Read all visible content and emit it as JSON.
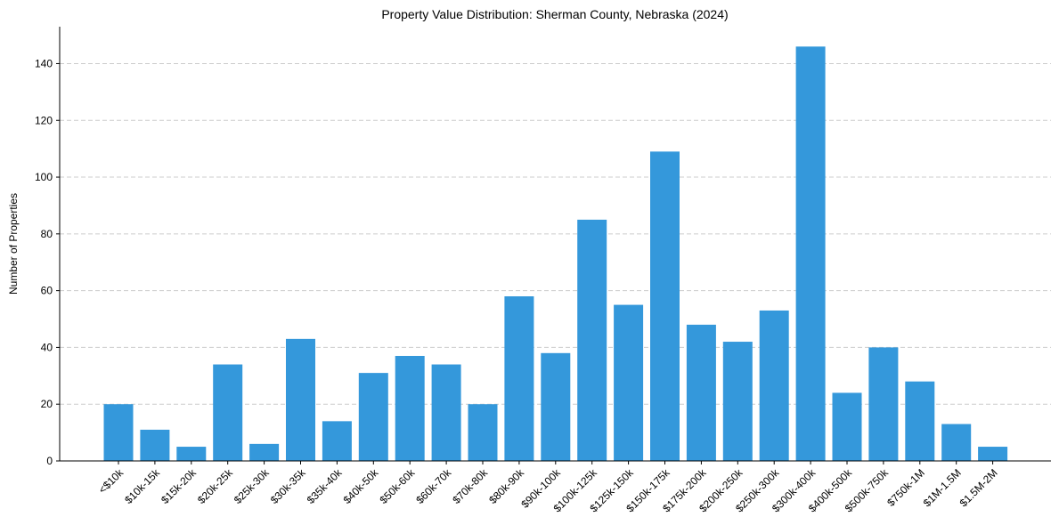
{
  "colors": {
    "bar": "#3498db",
    "grid": "#cccccc",
    "axis": "#000000",
    "background": "#ffffff"
  },
  "chart_data": {
    "type": "bar",
    "title": "Property Value Distribution: Sherman County, Nebraska (2024)",
    "xlabel": "",
    "ylabel": "Number of Properties",
    "ylim": [
      0,
      153
    ],
    "yticks": [
      0,
      20,
      40,
      60,
      80,
      100,
      120,
      140
    ],
    "grid": "horizontal-dashed",
    "categories": [
      "<$10k",
      "$10k-15k",
      "$15k-20k",
      "$20k-25k",
      "$25k-30k",
      "$30k-35k",
      "$35k-40k",
      "$40k-50k",
      "$50k-60k",
      "$60k-70k",
      "$70k-80k",
      "$80k-90k",
      "$90k-100k",
      "$100k-125k",
      "$125k-150k",
      "$150k-175k",
      "$175k-200k",
      "$200k-250k",
      "$250k-300k",
      "$300k-400k",
      "$400k-500k",
      "$500k-750k",
      "$750k-1M",
      "$1M-1.5M",
      "$1.5M-2M"
    ],
    "values": [
      20,
      11,
      5,
      34,
      6,
      43,
      14,
      31,
      37,
      34,
      20,
      58,
      38,
      85,
      55,
      109,
      48,
      42,
      53,
      146,
      24,
      40,
      28,
      13,
      5
    ]
  }
}
